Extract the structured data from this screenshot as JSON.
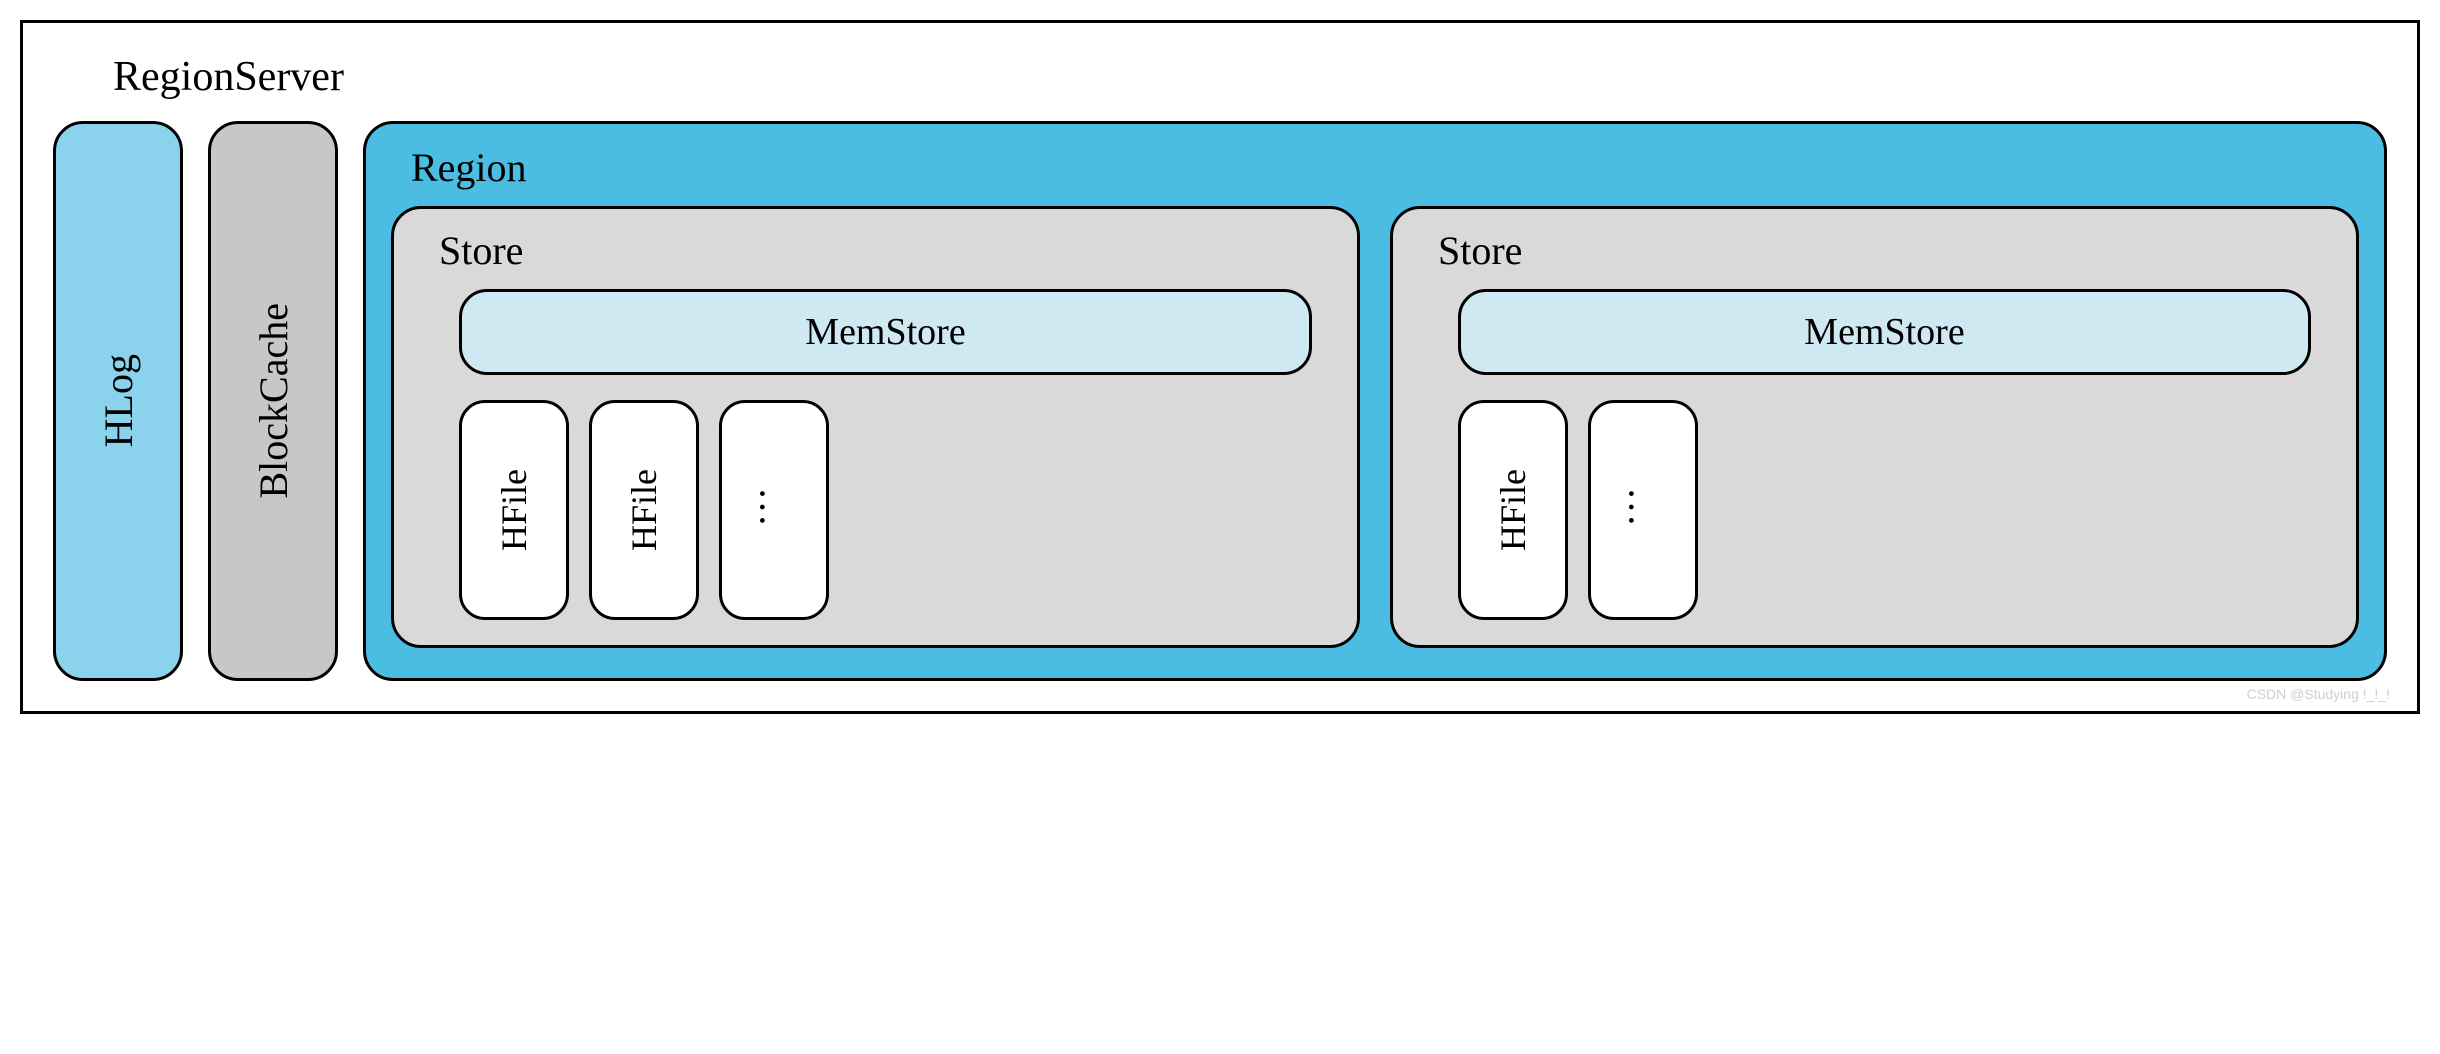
{
  "diagram": {
    "type": "block-diagram",
    "background_color": "#ffffff",
    "border_color": "#000000",
    "border_width": 3,
    "border_radius": 30,
    "font_family": "Times New Roman",
    "title_fontsize": 42,
    "label_fontsize": 40,
    "sub_label_fontsize": 38
  },
  "colors": {
    "hlog_bg": "#8bd3ed",
    "blockcache_bg": "#c7c7c7",
    "region_bg": "#4bbde2",
    "store_bg": "#d9d9d9",
    "memstore_bg": "#cfe9f2",
    "hfile_bg": "#ffffff",
    "border": "#000000"
  },
  "regionserver": {
    "title": "RegionServer",
    "hlog": {
      "label": "HLog"
    },
    "blockcache": {
      "label": "BlockCache"
    },
    "region": {
      "title": "Region",
      "stores": [
        {
          "title": "Store",
          "memstore": {
            "label": "MemStore"
          },
          "hfiles": [
            {
              "label": "HFile"
            },
            {
              "label": "HFile"
            },
            {
              "label": "…"
            }
          ]
        },
        {
          "title": "Store",
          "memstore": {
            "label": "MemStore"
          },
          "hfiles": [
            {
              "label": "HFile"
            },
            {
              "label": "…"
            }
          ]
        }
      ]
    }
  },
  "watermark": "CSDN @Studying !_!_!"
}
